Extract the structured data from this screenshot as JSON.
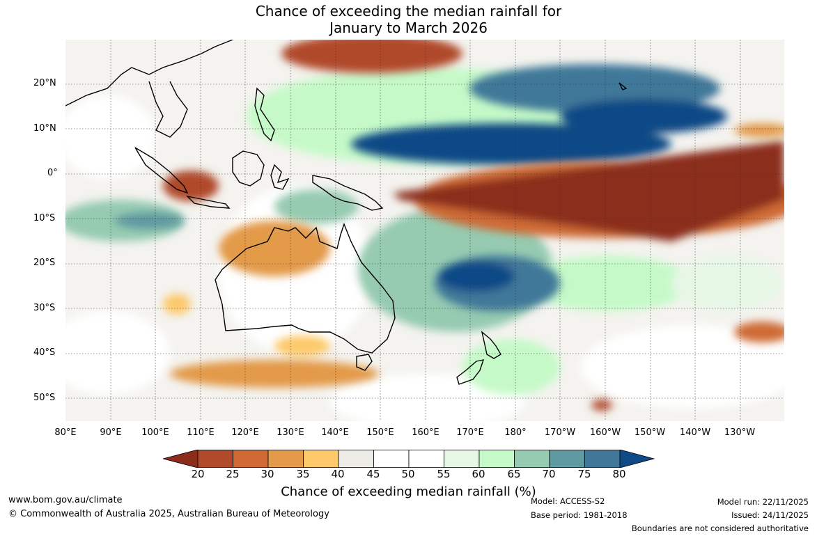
{
  "header": {
    "title_line1": "Chance of exceeding the median rainfall for",
    "title_line2": "January to March 2026"
  },
  "map": {
    "lat_labels": [
      "20°N",
      "10°N",
      "0°",
      "10°S",
      "20°S",
      "30°S",
      "40°S",
      "50°S"
    ],
    "lon_labels": [
      "80°E",
      "90°E",
      "100°E",
      "110°E",
      "120°E",
      "130°E",
      "140°E",
      "150°E",
      "160°E",
      "170°E",
      "180°",
      "170°W",
      "160°W",
      "150°W",
      "140°W",
      "130°W"
    ]
  },
  "colorbar": {
    "ticks": [
      "20",
      "25",
      "30",
      "35",
      "40",
      "45",
      "50",
      "55",
      "60",
      "65",
      "70",
      "75",
      "80"
    ],
    "colors": [
      "#8c2d1c",
      "#b04a2a",
      "#cf6a35",
      "#e39a4a",
      "#fdc96a",
      "#eeece6",
      "#ffffff",
      "#ffffff",
      "#e7f7e6",
      "#c5fac8",
      "#96cbb1",
      "#5f9aa0",
      "#417899",
      "#0f4a86"
    ],
    "label": "Chance of exceeding median rainfall (%)"
  },
  "footer": {
    "url": "www.bom.gov.au/climate",
    "copyright": "© Commonwealth of Australia 2025, Australian Bureau of Meteorology",
    "model": "Model: ACCESS-S2",
    "base_period": "Base period: 1981-2018",
    "model_run": "Model run: 22/11/2025",
    "issued": "Issued: 24/11/2025",
    "disclaimer": "Boundaries are not considered authoritative"
  }
}
